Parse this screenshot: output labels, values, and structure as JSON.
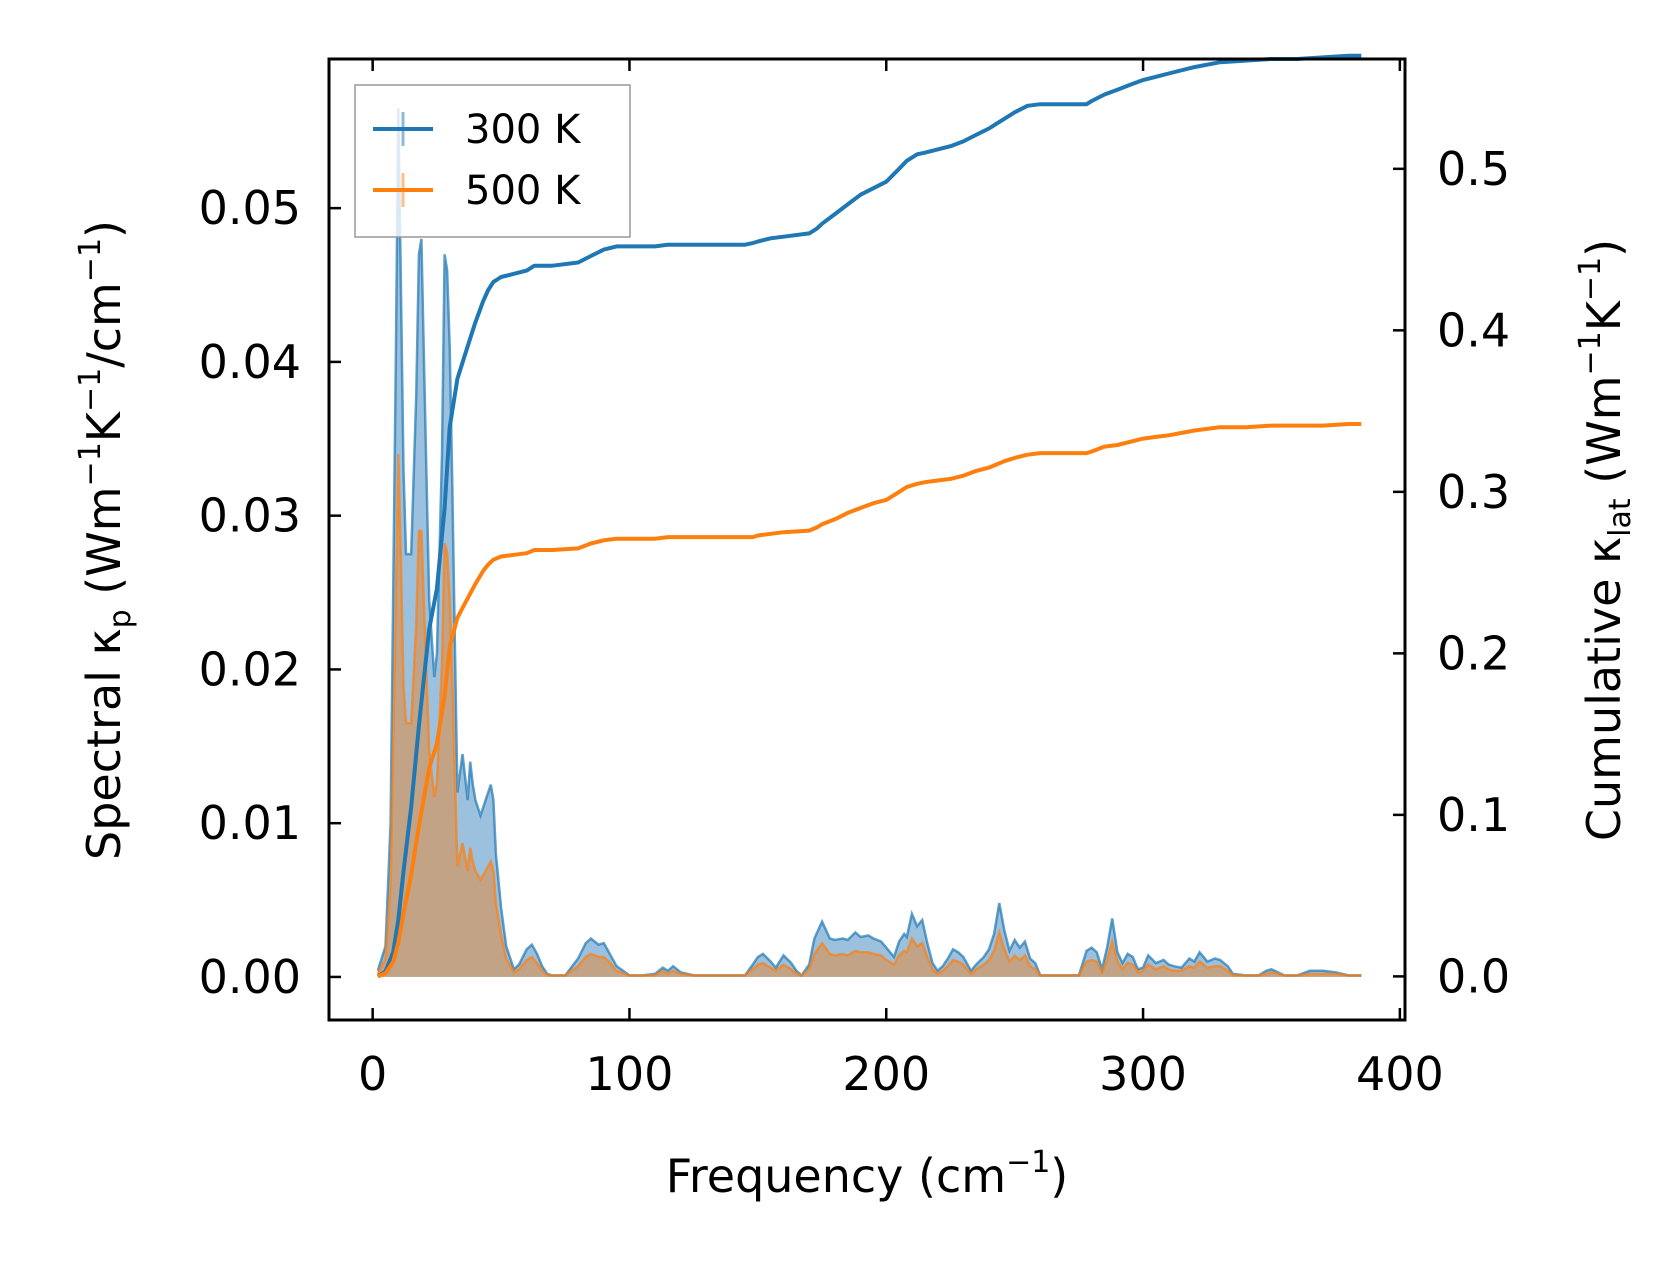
{
  "chart_data": {
    "type": "line",
    "title": "",
    "xlabel": {
      "base": "Frequency (cm",
      "sup": "−1",
      "end": ")"
    },
    "ylabel_left": {
      "p1": "Spectral κ",
      "sub1": "p",
      "p2": " (Wm",
      "sup1": "−1",
      "p3": "K",
      "sup2": "−1",
      "p4": "/cm",
      "sup3": "−1",
      "p5": ")"
    },
    "ylabel_right": {
      "p1": "Cumulative κ",
      "sub1": "lat",
      "p2": " (Wm",
      "sup1": "−1",
      "p3": "K",
      "sup2": "−1",
      "p4": ")"
    },
    "xlim": [
      -17,
      402
    ],
    "ylim_left": [
      -0.0028,
      0.0597
    ],
    "ylim_right": [
      -0.027,
      0.568
    ],
    "x_ticks": [
      0,
      100,
      200,
      300,
      400
    ],
    "x_tick_labels": [
      "0",
      "100",
      "200",
      "300",
      "400"
    ],
    "y_left_ticks": [
      0,
      0.01,
      0.02,
      0.03,
      0.04,
      0.05
    ],
    "y_left_tick_labels": [
      "0.00",
      "0.01",
      "0.02",
      "0.03",
      "0.04",
      "0.05"
    ],
    "y_right_ticks": [
      0,
      0.1,
      0.2,
      0.3,
      0.4,
      0.5
    ],
    "y_right_tick_labels": [
      "0.0",
      "0.1",
      "0.2",
      "0.3",
      "0.4",
      "0.5"
    ],
    "legend": {
      "position": "top-left",
      "entries": [
        "300 K",
        "500 K"
      ]
    },
    "grid": false,
    "spectral": {
      "x": [
        2,
        5,
        7,
        9,
        10,
        11,
        12,
        13,
        15,
        17,
        18,
        19,
        20,
        22,
        24,
        25,
        27,
        28,
        29,
        30,
        31,
        32,
        33,
        35,
        37,
        38,
        39,
        40,
        42,
        44,
        45,
        46,
        47,
        48,
        50,
        52,
        55,
        57,
        60,
        62,
        64,
        66,
        68,
        70,
        75,
        80,
        83,
        85,
        88,
        90,
        92,
        95,
        100,
        105,
        110,
        113,
        115,
        117,
        120,
        125,
        130,
        140,
        145,
        148,
        150,
        152,
        155,
        157,
        160,
        163,
        165,
        167,
        170,
        172,
        175,
        178,
        180,
        183,
        185,
        188,
        190,
        193,
        195,
        198,
        200,
        203,
        205,
        207,
        208,
        210,
        212,
        214,
        216,
        218,
        220,
        222,
        224,
        226,
        228,
        230,
        233,
        235,
        238,
        240,
        242,
        244,
        246,
        248,
        250,
        252,
        254,
        256,
        258,
        260,
        265,
        270,
        275,
        278,
        280,
        282,
        284,
        286,
        288,
        290,
        292,
        294,
        296,
        298,
        300,
        302,
        305,
        308,
        310,
        312,
        315,
        318,
        320,
        322,
        325,
        328,
        330,
        333,
        335,
        340,
        345,
        348,
        350,
        355,
        360,
        365,
        370,
        375,
        380,
        385
      ],
      "series": [
        {
          "name": "300 K",
          "color": "#1f77b4",
          "fill": "#8ab6d9",
          "values": [
            0.0004,
            0.002,
            0.01,
            0.04,
            0.0565,
            0.045,
            0.033,
            0.0275,
            0.0275,
            0.038,
            0.047,
            0.048,
            0.04,
            0.0245,
            0.0195,
            0.021,
            0.034,
            0.047,
            0.046,
            0.041,
            0.032,
            0.022,
            0.012,
            0.0145,
            0.0115,
            0.014,
            0.0125,
            0.0115,
            0.0105,
            0.0115,
            0.012,
            0.0125,
            0.0115,
            0.008,
            0.0045,
            0.002,
            0.0005,
            0.0008,
            0.0018,
            0.0021,
            0.0015,
            0.0007,
            0.0002,
            0.0001,
            0.0001,
            0.0012,
            0.0022,
            0.0025,
            0.0021,
            0.0022,
            0.0016,
            0.0007,
            0.0001,
            0.0001,
            0.0002,
            0.0006,
            0.0004,
            0.0007,
            0.0003,
            0.0001,
            0.0001,
            0.0001,
            0.0001,
            0.0008,
            0.0013,
            0.0015,
            0.001,
            0.0006,
            0.0014,
            0.0009,
            0.0004,
            0.0001,
            0.0008,
            0.0025,
            0.0036,
            0.0025,
            0.0024,
            0.0025,
            0.0024,
            0.0029,
            0.0026,
            0.0027,
            0.0025,
            0.0023,
            0.0019,
            0.0013,
            0.0023,
            0.0028,
            0.0026,
            0.0041,
            0.0033,
            0.0037,
            0.0022,
            0.0009,
            0.0004,
            0.0007,
            0.0012,
            0.0018,
            0.0016,
            0.0013,
            0.0004,
            0.0008,
            0.0013,
            0.0018,
            0.0028,
            0.0048,
            0.003,
            0.0017,
            0.0024,
            0.0019,
            0.0023,
            0.0012,
            0.0009,
            0.0001,
            0.0001,
            0.0001,
            0.0001,
            0.0017,
            0.0019,
            0.0016,
            0.0005,
            0.0019,
            0.0038,
            0.0016,
            0.0009,
            0.0015,
            0.0013,
            0.0005,
            0.0006,
            0.0014,
            0.0009,
            0.0011,
            0.0008,
            0.0007,
            0.0006,
            0.0012,
            0.001,
            0.0016,
            0.001,
            0.0012,
            0.0011,
            0.0007,
            0.0002,
            0.0001,
            0.0001,
            0.0004,
            0.0005,
            0.0001,
            0.0001,
            0.0004,
            0.0004,
            0.0003,
            0.0001,
            0.0001
          ]
        },
        {
          "name": "500 K",
          "color": "#ff7f0e",
          "fill": "#c99e76",
          "values": [
            0.0002,
            0.0012,
            0.006,
            0.024,
            0.034,
            0.027,
            0.019,
            0.0165,
            0.0165,
            0.023,
            0.029,
            0.029,
            0.024,
            0.0147,
            0.0117,
            0.0126,
            0.0204,
            0.0282,
            0.0276,
            0.0246,
            0.0192,
            0.0132,
            0.0072,
            0.0087,
            0.0069,
            0.0084,
            0.0075,
            0.0069,
            0.0063,
            0.0069,
            0.0072,
            0.0075,
            0.0069,
            0.0048,
            0.0027,
            0.0012,
            0.0003,
            0.0005,
            0.0011,
            0.0013,
            0.0009,
            0.0004,
            0.0001,
            0.0001,
            0.0001,
            0.0007,
            0.0013,
            0.0015,
            0.0013,
            0.0013,
            0.001,
            0.0004,
            0.0001,
            0.0001,
            0.0001,
            0.0004,
            0.0002,
            0.0004,
            0.0002,
            0.0001,
            0.0001,
            0.0001,
            0.0001,
            0.0005,
            0.0008,
            0.0009,
            0.0006,
            0.0004,
            0.0008,
            0.0005,
            0.0002,
            0.0001,
            0.0005,
            0.0015,
            0.0022,
            0.0015,
            0.0014,
            0.0015,
            0.0014,
            0.0017,
            0.0016,
            0.0016,
            0.0015,
            0.0014,
            0.0011,
            0.0008,
            0.0014,
            0.0017,
            0.0016,
            0.0025,
            0.002,
            0.0022,
            0.0013,
            0.0005,
            0.0002,
            0.0004,
            0.0007,
            0.0011,
            0.001,
            0.0008,
            0.0002,
            0.0005,
            0.0008,
            0.0011,
            0.0017,
            0.0029,
            0.0018,
            0.001,
            0.0014,
            0.0011,
            0.0014,
            0.0007,
            0.0005,
            0.0001,
            0.0001,
            0.0001,
            0.0001,
            0.001,
            0.0011,
            0.001,
            0.0003,
            0.0011,
            0.0023,
            0.001,
            0.0005,
            0.0009,
            0.0008,
            0.0003,
            0.0004,
            0.0008,
            0.0005,
            0.0007,
            0.0005,
            0.0004,
            0.0004,
            0.0007,
            0.0006,
            0.001,
            0.0006,
            0.0007,
            0.0007,
            0.0004,
            0.0001,
            0.0001,
            0.0001,
            0.0002,
            0.0003,
            0.0001,
            0.0001,
            0.0002,
            0.0002,
            0.0002,
            0.0001,
            0.0001
          ]
        }
      ]
    },
    "cumulative": {
      "x": [
        2,
        5,
        8,
        10,
        12,
        15,
        18,
        20,
        22,
        25,
        28,
        30,
        33,
        35,
        38,
        40,
        43,
        45,
        47,
        50,
        55,
        60,
        63,
        70,
        80,
        85,
        90,
        95,
        100,
        110,
        115,
        120,
        130,
        140,
        145,
        148,
        150,
        155,
        160,
        170,
        173,
        175,
        180,
        185,
        190,
        195,
        200,
        205,
        208,
        212,
        215,
        220,
        225,
        230,
        235,
        240,
        243,
        246,
        250,
        255,
        260,
        270,
        278,
        280,
        285,
        290,
        295,
        300,
        305,
        310,
        320,
        330,
        340,
        350,
        360,
        370,
        380,
        385
      ],
      "series": [
        {
          "name": "300 K",
          "color": "#1f77b4",
          "values": [
            0.0,
            0.003,
            0.015,
            0.035,
            0.065,
            0.105,
            0.155,
            0.185,
            0.215,
            0.24,
            0.29,
            0.34,
            0.37,
            0.38,
            0.395,
            0.405,
            0.418,
            0.425,
            0.43,
            0.433,
            0.435,
            0.437,
            0.44,
            0.44,
            0.442,
            0.446,
            0.45,
            0.452,
            0.452,
            0.452,
            0.453,
            0.453,
            0.453,
            0.453,
            0.453,
            0.454,
            0.455,
            0.457,
            0.458,
            0.46,
            0.463,
            0.466,
            0.472,
            0.478,
            0.484,
            0.488,
            0.492,
            0.5,
            0.505,
            0.509,
            0.51,
            0.512,
            0.514,
            0.517,
            0.521,
            0.525,
            0.528,
            0.531,
            0.535,
            0.539,
            0.54,
            0.54,
            0.54,
            0.542,
            0.546,
            0.549,
            0.552,
            0.555,
            0.557,
            0.559,
            0.563,
            0.566,
            0.567,
            0.568,
            0.568,
            0.569,
            0.57,
            0.57
          ]
        },
        {
          "name": "500 K",
          "color": "#ff7f0e",
          "values": [
            0.0,
            0.002,
            0.009,
            0.021,
            0.039,
            0.063,
            0.093,
            0.111,
            0.129,
            0.144,
            0.174,
            0.204,
            0.222,
            0.228,
            0.237,
            0.243,
            0.251,
            0.255,
            0.258,
            0.26,
            0.261,
            0.262,
            0.264,
            0.264,
            0.265,
            0.268,
            0.27,
            0.271,
            0.271,
            0.271,
            0.272,
            0.272,
            0.272,
            0.272,
            0.272,
            0.272,
            0.273,
            0.274,
            0.275,
            0.276,
            0.278,
            0.28,
            0.283,
            0.287,
            0.29,
            0.293,
            0.295,
            0.3,
            0.303,
            0.305,
            0.306,
            0.307,
            0.308,
            0.31,
            0.313,
            0.315,
            0.317,
            0.319,
            0.321,
            0.323,
            0.324,
            0.324,
            0.324,
            0.325,
            0.328,
            0.329,
            0.331,
            0.333,
            0.334,
            0.335,
            0.338,
            0.34,
            0.34,
            0.341,
            0.341,
            0.341,
            0.342,
            0.342
          ]
        }
      ]
    }
  }
}
